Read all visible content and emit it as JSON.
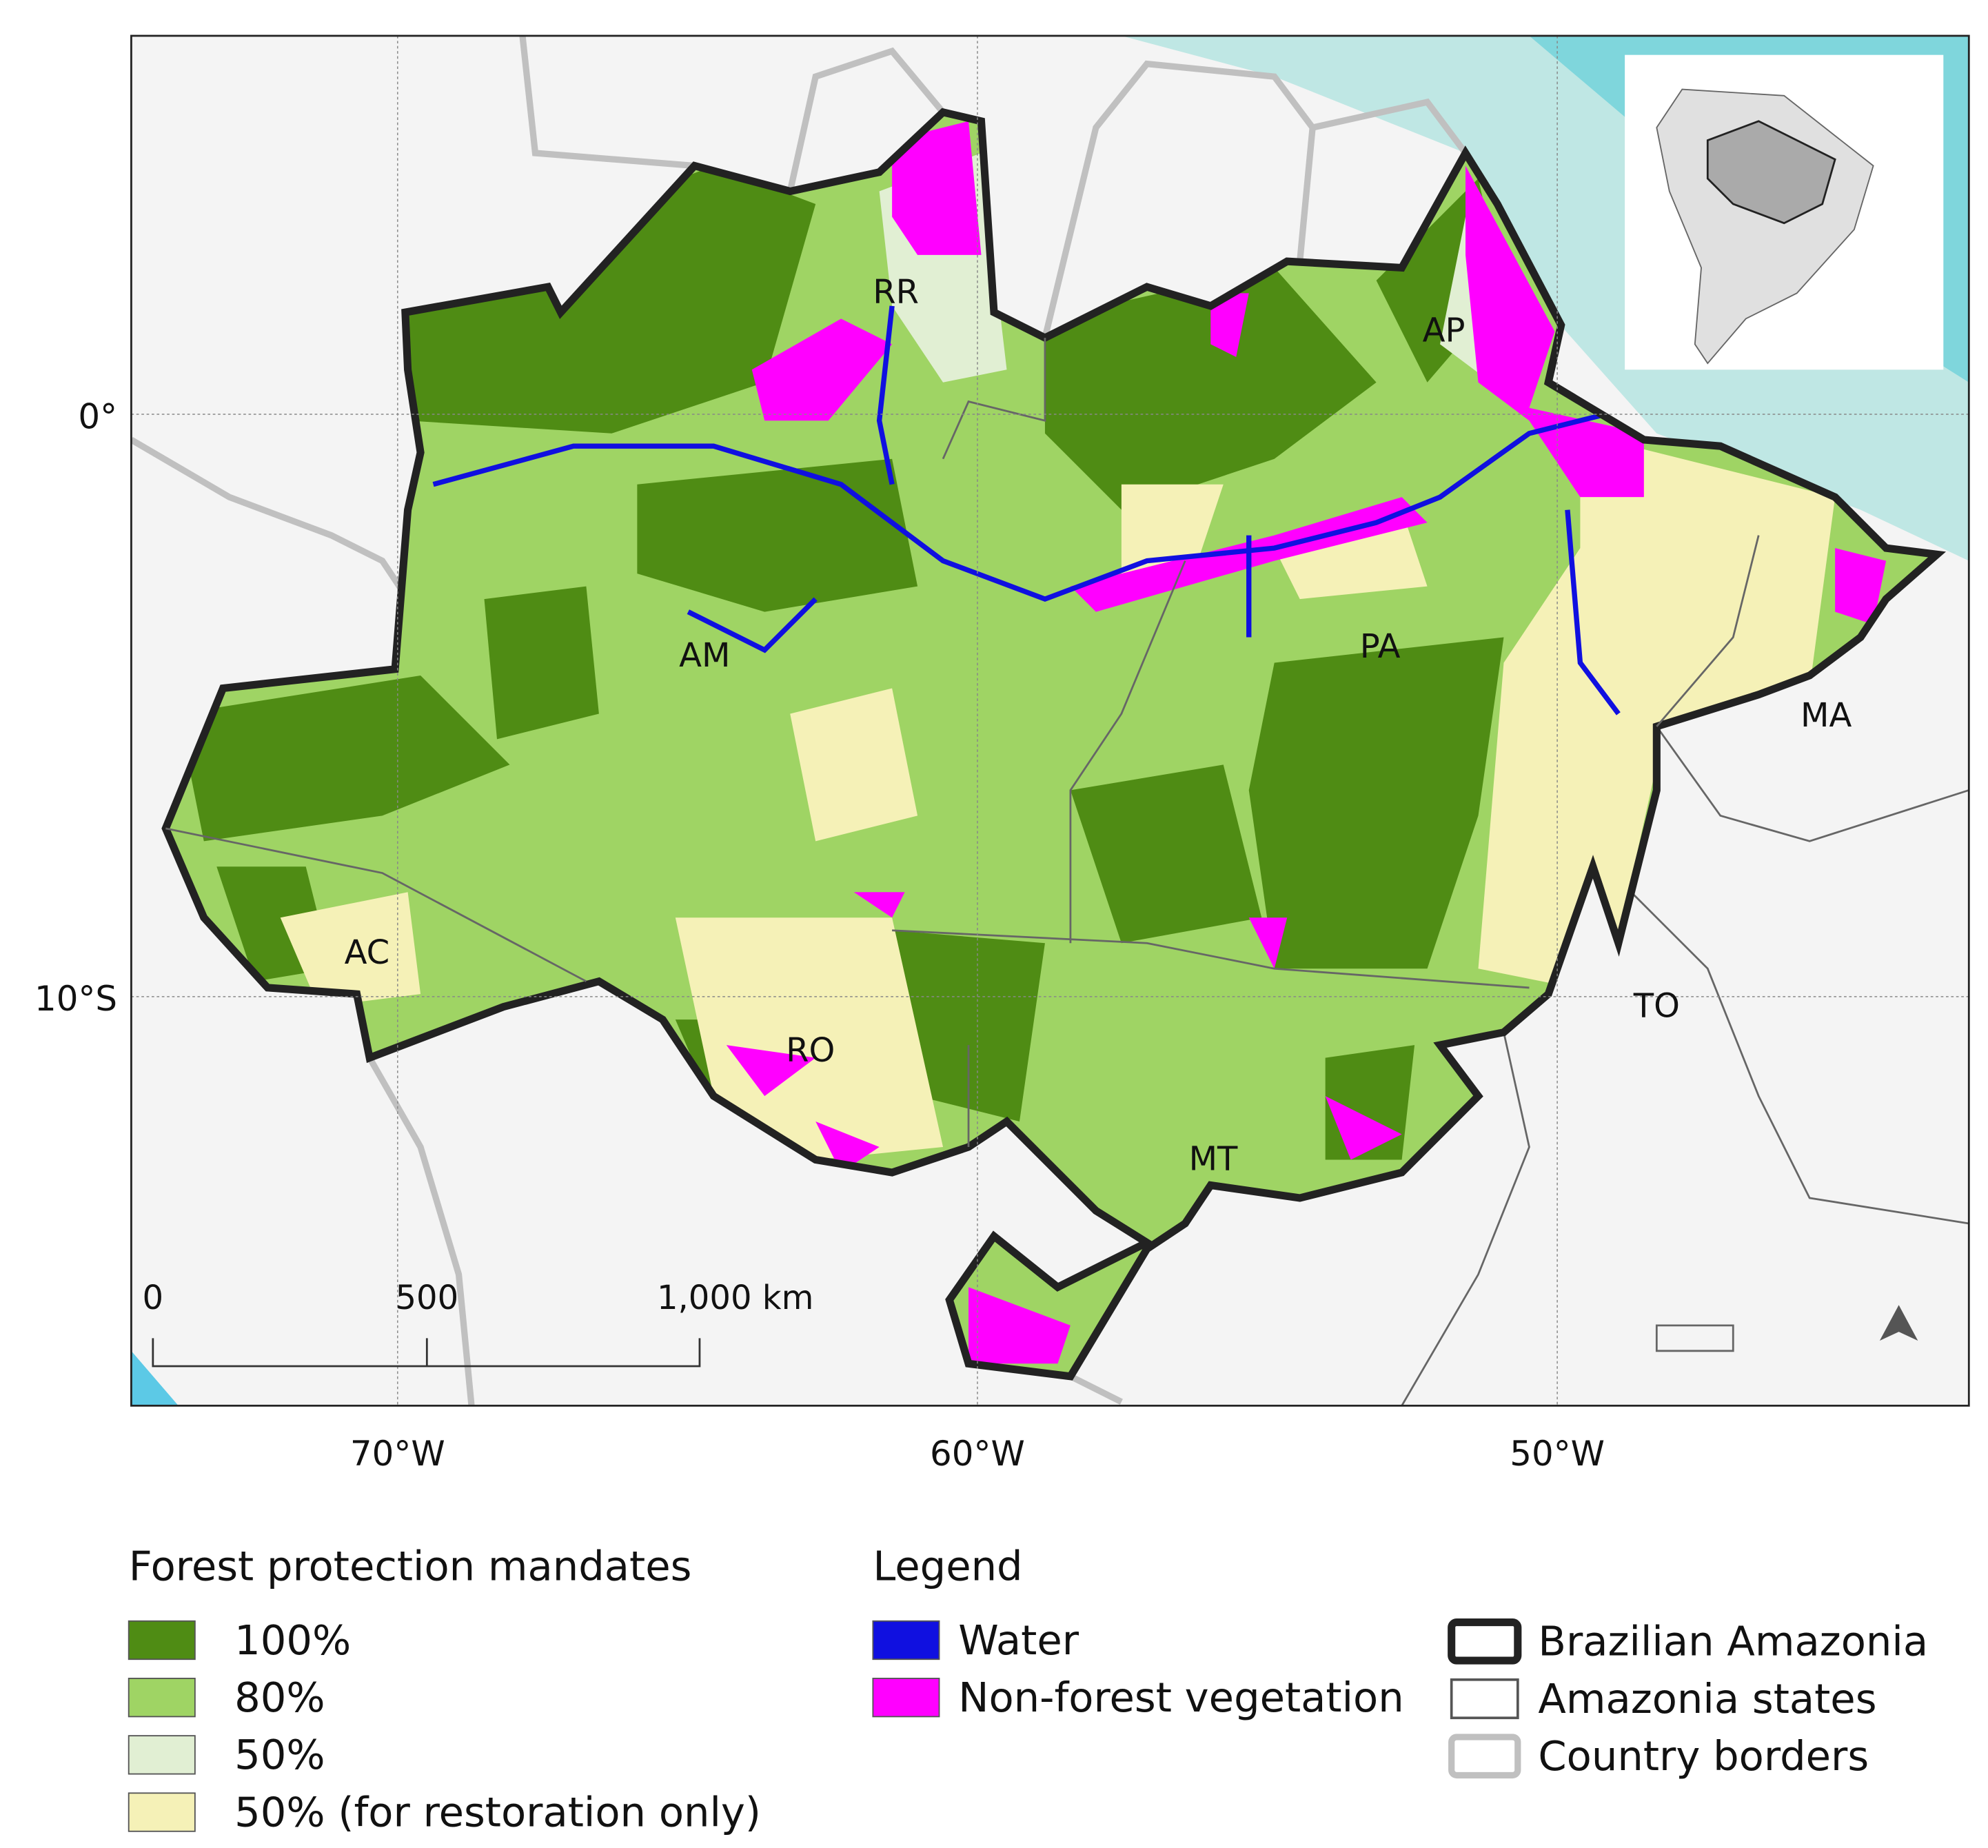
{
  "map": {
    "axes": {
      "lat_labels": [
        "0°",
        "10°S"
      ],
      "lon_labels": [
        "70°W",
        "60°W",
        "50°W"
      ]
    },
    "state_labels": [
      "RR",
      "AP",
      "AM",
      "PA",
      "MA",
      "AC",
      "RO",
      "TO",
      "MT"
    ],
    "scale_bar": {
      "labels": [
        "0",
        "500",
        "1,000 km"
      ]
    },
    "north_arrow": "north-arrow-icon",
    "inset": "south-america-locator"
  },
  "legend_mandates": {
    "title": "Forest protection mandates",
    "items": [
      {
        "label": "100%",
        "color": "#4f8c14"
      },
      {
        "label": "80%",
        "color": "#9fd464"
      },
      {
        "label": "50%",
        "color": "#e1efd3"
      },
      {
        "label": "50% (for restoration only)",
        "color": "#f5f1b7"
      }
    ]
  },
  "legend_other": {
    "title": "Legend",
    "items": [
      {
        "label": "Water",
        "color": "#1010e0"
      },
      {
        "label": "Non-forest vegetation",
        "color": "#ff00ff"
      }
    ],
    "lines": [
      {
        "label": "Brazilian Amazonia",
        "color": "#222222"
      },
      {
        "label": "Amazonia states",
        "color": "#555555"
      },
      {
        "label": "Country borders",
        "color": "#c0c0c0"
      }
    ]
  }
}
